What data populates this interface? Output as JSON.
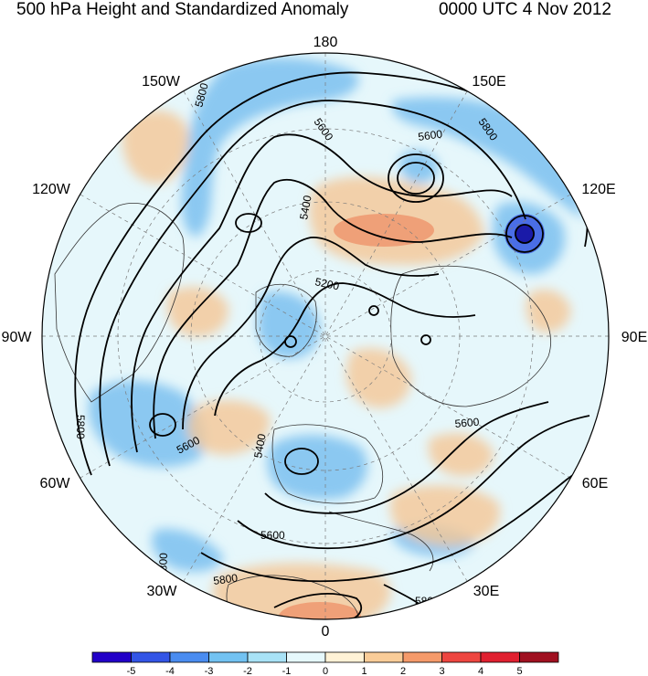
{
  "header": {
    "title": "500 hPa Height and Standardized Anomaly",
    "datetime": "0000 UTC 4 Nov 2012"
  },
  "map": {
    "projection": "north polar stereographic",
    "longitude_labels": [
      "180",
      "150E",
      "120E",
      "90E",
      "60E",
      "30E",
      "0",
      "30W",
      "60W",
      "90W",
      "120W",
      "150W"
    ],
    "contour_labels": [
      "5800",
      "5600",
      "5800",
      "5600",
      "5400",
      "5200",
      "5400",
      "5600",
      "5600",
      "5600",
      "5800",
      "5800",
      "5800"
    ],
    "anomaly_colors": {
      "strong_negative": "#1a1aa8",
      "negative": "#6cb8ee",
      "weak_negative": "#bfe6f8",
      "neutral": "#e6f7fb",
      "weak_positive": "#fbeccc",
      "positive": "#f5c796",
      "strong_positive": "#ee9870"
    }
  },
  "colorbar": {
    "labels": [
      "-5",
      "-4",
      "-3",
      "-2",
      "-1",
      "0",
      "1",
      "2",
      "3",
      "4",
      "5"
    ],
    "colors": [
      "#2200c8",
      "#3355e6",
      "#4a8cf0",
      "#72c2f2",
      "#a8e2f6",
      "#e6f8fc",
      "#fff2d6",
      "#f9cc98",
      "#f59a6a",
      "#ee4640",
      "#e02030",
      "#a01020"
    ]
  }
}
